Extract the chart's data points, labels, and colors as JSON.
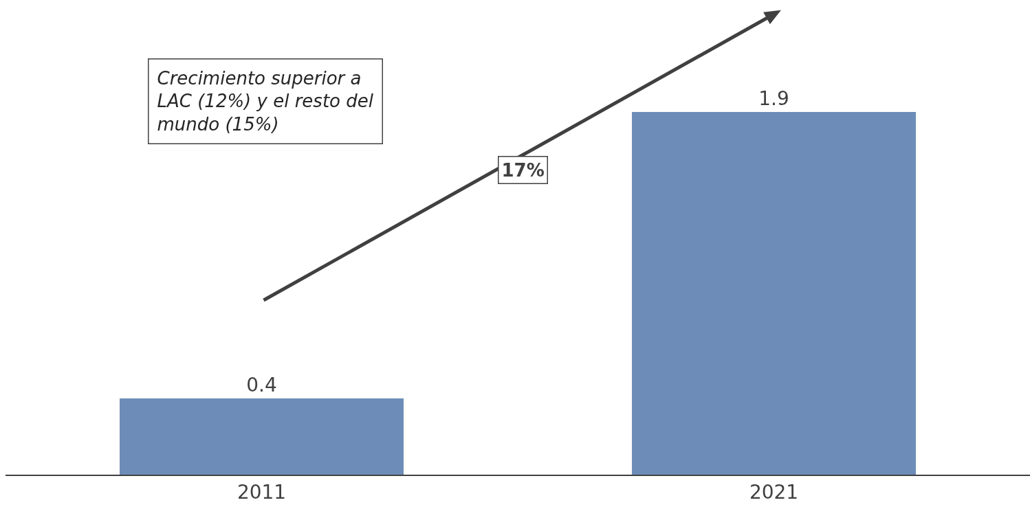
{
  "chart_data": {
    "type": "bar",
    "categories": [
      "2011",
      "2021"
    ],
    "values": [
      0.4,
      1.9
    ],
    "color": "#6d8db8",
    "data_labels": true,
    "tick_labels": "x",
    "annotations": [
      "Crecimiento superior a LAC (12%) y el resto del mundo (15%)",
      "17%"
    ]
  }
}
